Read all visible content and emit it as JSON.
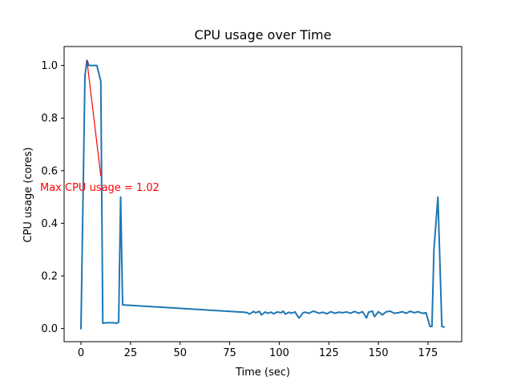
{
  "chart_data": {
    "type": "line",
    "title": "CPU usage over Time",
    "xlabel": "Time (sec)",
    "ylabel": "CPU usage (cores)",
    "xlim": [
      -8.5,
      192
    ],
    "ylim": [
      -0.05,
      1.072
    ],
    "xticks": [
      0,
      25,
      50,
      75,
      100,
      125,
      150,
      175
    ],
    "xtick_labels": [
      "0",
      "25",
      "50",
      "75",
      "100",
      "125",
      "150",
      "175"
    ],
    "yticks": [
      0.0,
      0.2,
      0.4,
      0.6,
      0.8,
      1.0
    ],
    "ytick_labels": [
      "0.0",
      "0.2",
      "0.4",
      "0.6",
      "0.8",
      "1.0"
    ],
    "grid": false,
    "line_color": "#1f77b4",
    "series": [
      {
        "x": [
          0,
          2,
          3,
          4,
          5,
          8,
          10,
          11,
          13,
          16,
          18,
          19,
          20,
          21,
          82,
          84,
          85,
          87,
          88,
          90,
          91,
          93,
          94,
          96,
          97,
          99,
          101,
          102,
          103,
          105,
          106,
          108,
          109,
          110,
          112,
          113,
          115,
          117,
          118,
          120,
          122,
          124,
          126,
          128,
          130,
          132,
          134,
          136,
          138,
          140,
          142,
          144,
          145,
          147,
          148,
          150,
          152,
          154,
          156,
          158,
          160,
          162,
          164,
          166,
          168,
          170,
          172,
          174,
          176,
          177,
          178,
          180,
          182,
          183
        ],
        "y": [
          0.0,
          0.96,
          1.02,
          1.0,
          1.0,
          1.0,
          0.94,
          0.02,
          0.022,
          0.022,
          0.02,
          0.024,
          0.5,
          0.09,
          0.062,
          0.06,
          0.055,
          0.065,
          0.06,
          0.065,
          0.052,
          0.063,
          0.058,
          0.062,
          0.056,
          0.063,
          0.06,
          0.066,
          0.055,
          0.062,
          0.058,
          0.063,
          0.05,
          0.04,
          0.06,
          0.062,
          0.058,
          0.066,
          0.064,
          0.058,
          0.062,
          0.056,
          0.064,
          0.058,
          0.062,
          0.06,
          0.063,
          0.058,
          0.065,
          0.058,
          0.064,
          0.04,
          0.062,
          0.066,
          0.045,
          0.064,
          0.052,
          0.064,
          0.066,
          0.058,
          0.06,
          0.064,
          0.058,
          0.066,
          0.06,
          0.064,
          0.058,
          0.06,
          0.008,
          0.008,
          0.3,
          0.5,
          0.008,
          0.006
        ]
      }
    ],
    "annotation": {
      "text": "Max CPU usage = 1.02",
      "color": "#ff0000",
      "point": [
        3,
        1.02
      ],
      "text_anchor": [
        10,
        0.58
      ]
    }
  }
}
